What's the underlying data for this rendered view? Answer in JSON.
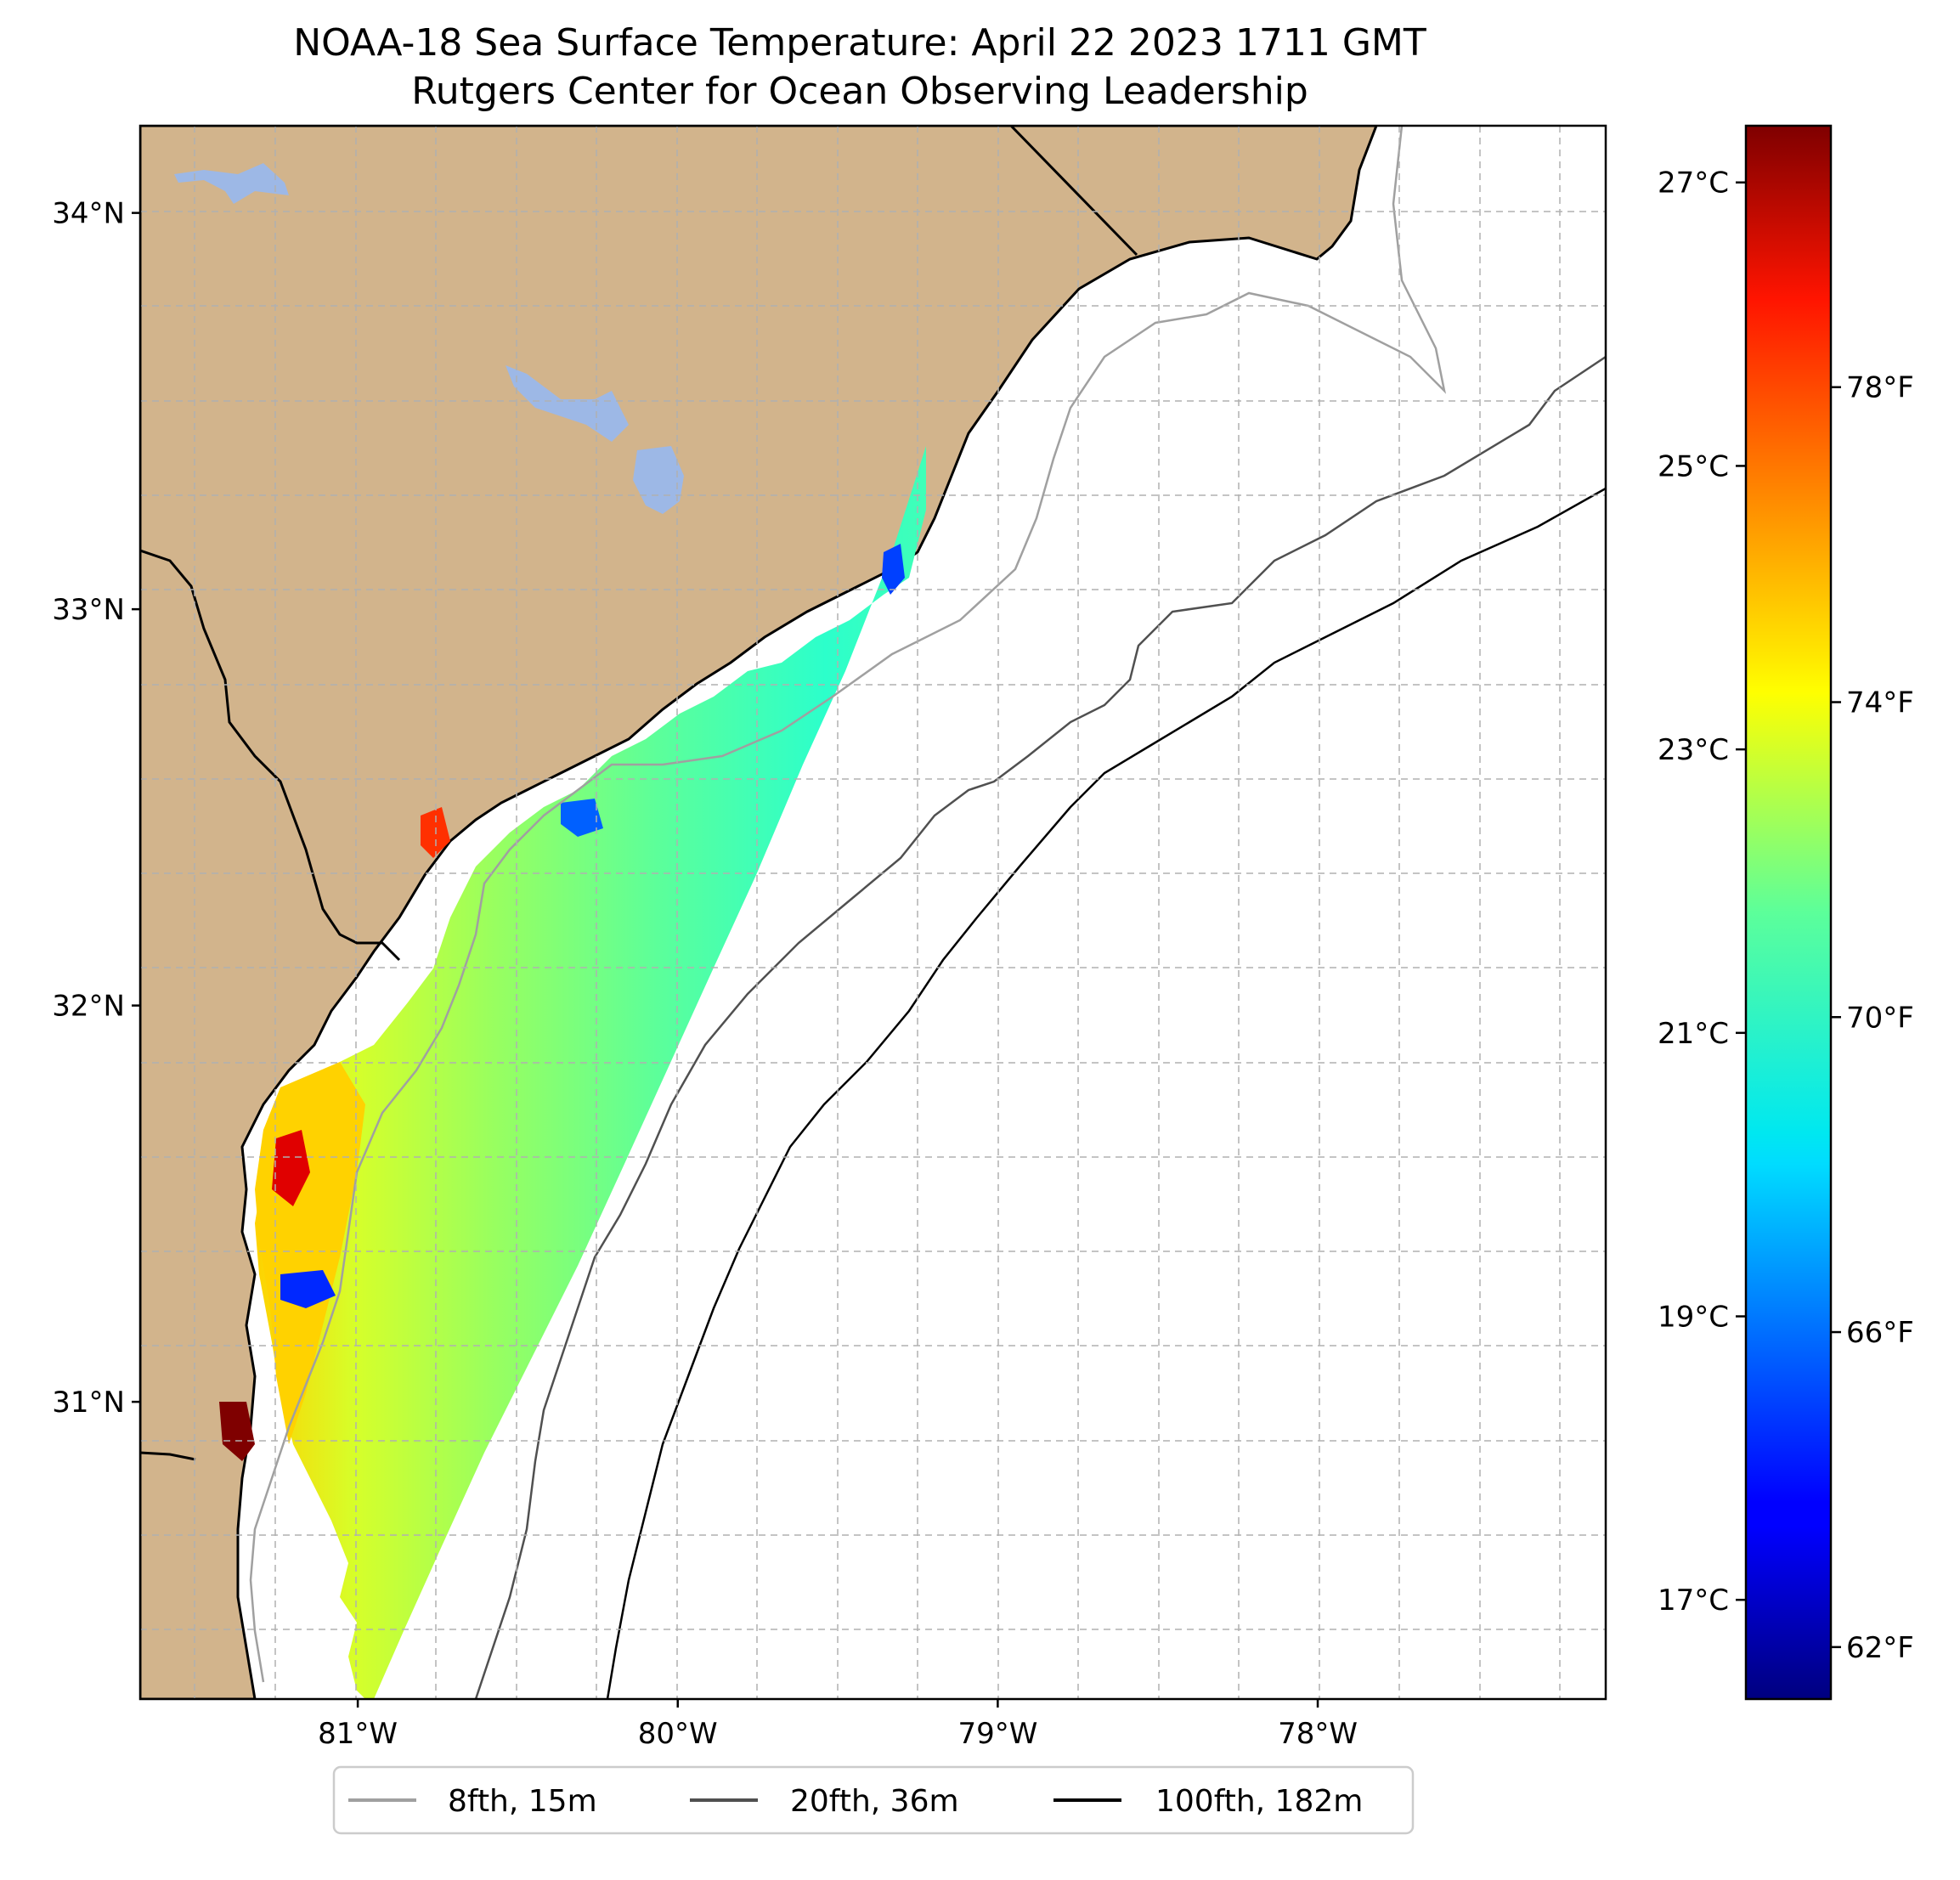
{
  "title": {
    "line1": "NOAA-18 Sea Surface Temperature: April 22 2023 1711 GMT",
    "line2": "Rutgers Center for Ocean Observing Leadership"
  },
  "map": {
    "lon_range": [
      -81.68,
      -77.1
    ],
    "lat_range": [
      30.25,
      34.22
    ],
    "lat_ticks": [
      {
        "value": 31,
        "label": "31°N"
      },
      {
        "value": 32,
        "label": "32°N"
      },
      {
        "value": 33,
        "label": "33°N"
      },
      {
        "value": 34,
        "label": "34°N"
      }
    ],
    "lon_ticks": [
      {
        "value": -81,
        "label": "81°W"
      },
      {
        "value": -80,
        "label": "80°W"
      },
      {
        "value": -79,
        "label": "79°W"
      },
      {
        "value": -78,
        "label": "78°W"
      }
    ],
    "colors": {
      "land": "#d2b48c",
      "water_body": "#9db8e6",
      "grid": "#b0b0b0",
      "contour_8fth": "#a0a0a0",
      "contour_20fth": "#505050",
      "contour_100fth": "#000000"
    }
  },
  "colorbar": {
    "colormap": "jet",
    "range_c": [
      16.3,
      27.4
    ],
    "celsius_ticks": [
      {
        "value": 17,
        "label": "17°C"
      },
      {
        "value": 19,
        "label": "19°C"
      },
      {
        "value": 21,
        "label": "21°C"
      },
      {
        "value": 23,
        "label": "23°C"
      },
      {
        "value": 25,
        "label": "25°C"
      },
      {
        "value": 27,
        "label": "27°C"
      }
    ],
    "fahrenheit_ticks": [
      {
        "value": 62,
        "label": "62°F"
      },
      {
        "value": 66,
        "label": "66°F"
      },
      {
        "value": 70,
        "label": "70°F"
      },
      {
        "value": 74,
        "label": "74°F"
      },
      {
        "value": 78,
        "label": "78°F"
      }
    ]
  },
  "legend": {
    "items": [
      {
        "label": "8fth, 15m",
        "color": "#a0a0a0"
      },
      {
        "label": "20fth, 36m",
        "color": "#505050"
      },
      {
        "label": "100fth, 182m",
        "color": "#000000"
      }
    ]
  }
}
